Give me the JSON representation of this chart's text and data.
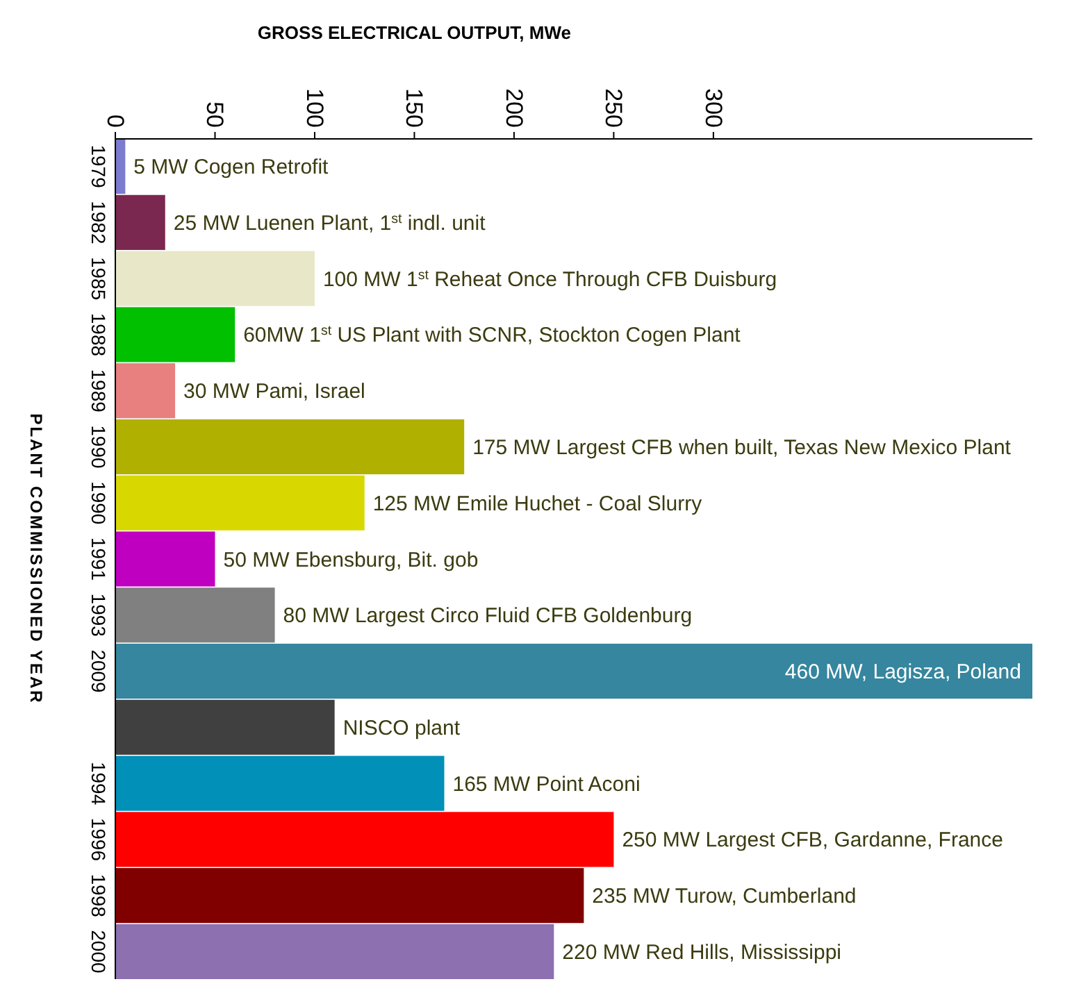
{
  "chart_data": {
    "type": "bar",
    "orientation": "horizontal",
    "xlabel": "GROSS ELECTRICAL OUTPUT, MWe",
    "ylabel": "PLANT COMMISSIONED YEAR",
    "categories": [
      "1979",
      "1982",
      "1985",
      "1988",
      "1989",
      "1990",
      "1990",
      "1991",
      "1993",
      "2009",
      null,
      "1994",
      "1996",
      "1998",
      "2000"
    ],
    "values": [
      5,
      25,
      100,
      60,
      30,
      175,
      125,
      50,
      80,
      460,
      110,
      165,
      250,
      235,
      220
    ],
    "colors": [
      "#7b7bd0",
      "#7a2850",
      "#e8e8c8",
      "#00c000",
      "#e88080",
      "#b0b000",
      "#d8d800",
      "#c000c0",
      "#808080",
      "#35869e",
      "#404040",
      "#0090b8",
      "#ff0000",
      "#800000",
      "#8c70b0"
    ],
    "value_labels": [
      "5 MW Cogen Retrofit",
      "25 MW Luenen Plant, 1$^{st}$ indl. unit",
      "100 MW 1$^{st}$ Reheat Once Through CFB Duisburg",
      "60MW 1$^{st}$ US Plant with SCNR, Stockton Cogen Plant",
      "30 MW Pami, Israel",
      "175 MW Largest CFB when built, Texas New Mexico Plant",
      "125 MW Emile Huchet - Coal Slurry",
      "50 MW Ebensburg, Bit. gob",
      "80 MW Largest Circo Fluid CFB Goldenburg",
      "460 MW, Lagisza, Poland",
      "NISCO plant",
      "165 MW Point Aconi",
      "250 MW Largest CFB, Gardanne, France",
      "235 MW Turow, Cumberland",
      "220 MW Red Hills, Mississippi"
    ],
    "xlim": [
      0,
      460
    ],
    "xticks": [
      0,
      50,
      100,
      150,
      200,
      250,
      300
    ],
    "grid": false
  }
}
